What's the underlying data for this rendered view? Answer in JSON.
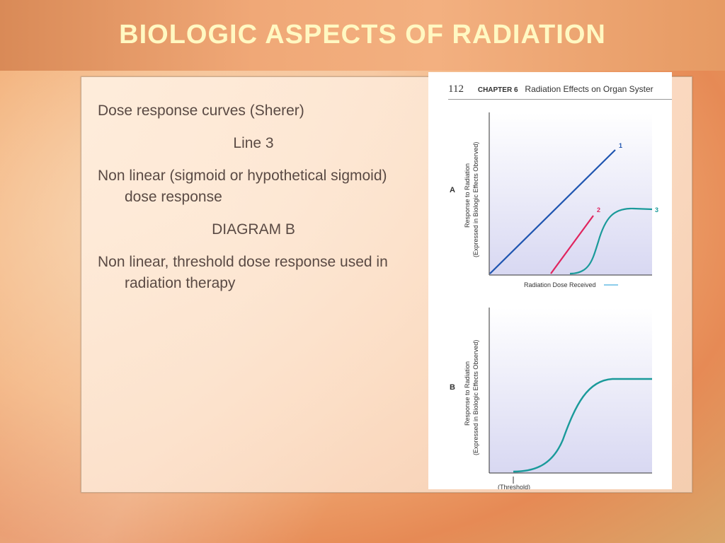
{
  "slide": {
    "title": "BIOLOGIC ASPECTS OF RADIATION",
    "lines": {
      "l1": "Dose response  curves (Sherer)",
      "l2": "Line 3",
      "l3": "Non linear (sigmoid or hypothetical sigmoid) dose response",
      "l4": "DIAGRAM B",
      "l5": "Non linear, threshold dose response used in radiation therapy"
    }
  },
  "book": {
    "page_number": "112",
    "chapter": "CHAPTER 6",
    "chapter_title": "Radiation Effects on Organ Syster",
    "diagram_a": {
      "label": "A",
      "ylabel_1": "Response to Radiation",
      "ylabel_2": "(Expressed in Biologic Effects Observed)",
      "xlabel": "Radiation Dose Received",
      "curve_1": "1",
      "curve_2": "2",
      "curve_3": "3"
    },
    "diagram_b": {
      "label": "B",
      "ylabel_1": "Response to Radiation",
      "ylabel_2": "(Expressed in Biologic Effects Observed)",
      "xlabel": "(Threshold)"
    },
    "colors": {
      "line1": "#1f55b0",
      "line2": "#e0245e",
      "line3": "#1a9a9a"
    }
  }
}
